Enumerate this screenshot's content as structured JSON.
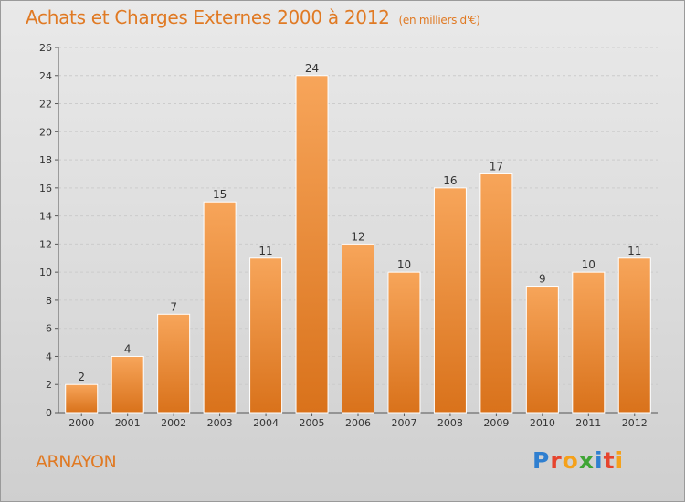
{
  "header": {
    "title": "Achats et Charges Externes 2000 à 2012",
    "unit": "(en milliers d'€)"
  },
  "commune": "ARNAYON",
  "logo": {
    "text": "Proxiti",
    "letters": [
      {
        "char": "P",
        "color": "#2f7fd0"
      },
      {
        "char": "r",
        "color": "#e6442e"
      },
      {
        "char": "o",
        "color": "#f5a11a"
      },
      {
        "char": "x",
        "color": "#3fa535"
      },
      {
        "char": "i",
        "color": "#2f7fd0"
      },
      {
        "char": "t",
        "color": "#e6442e"
      },
      {
        "char": "i",
        "color": "#f5a11a"
      }
    ]
  },
  "colors": {
    "accent": "#e07a24",
    "bar_top": "#f7a55a",
    "bar_bottom": "#d9721b",
    "grid": "#cccccc"
  },
  "chart_data": {
    "type": "bar",
    "title": "Achats et Charges Externes 2000 à 2012",
    "subtitle": "(en milliers d'€)",
    "categories": [
      "2000",
      "2001",
      "2002",
      "2003",
      "2004",
      "2005",
      "2006",
      "2007",
      "2008",
      "2009",
      "2010",
      "2011",
      "2012"
    ],
    "values": [
      2,
      4,
      7,
      15,
      11,
      24,
      12,
      10,
      16,
      17,
      9,
      10,
      11
    ],
    "ylim": [
      0,
      26
    ],
    "yticks": [
      0,
      2,
      4,
      6,
      8,
      10,
      12,
      14,
      16,
      18,
      20,
      22,
      24,
      26
    ],
    "grid": true,
    "data_labels": true
  }
}
